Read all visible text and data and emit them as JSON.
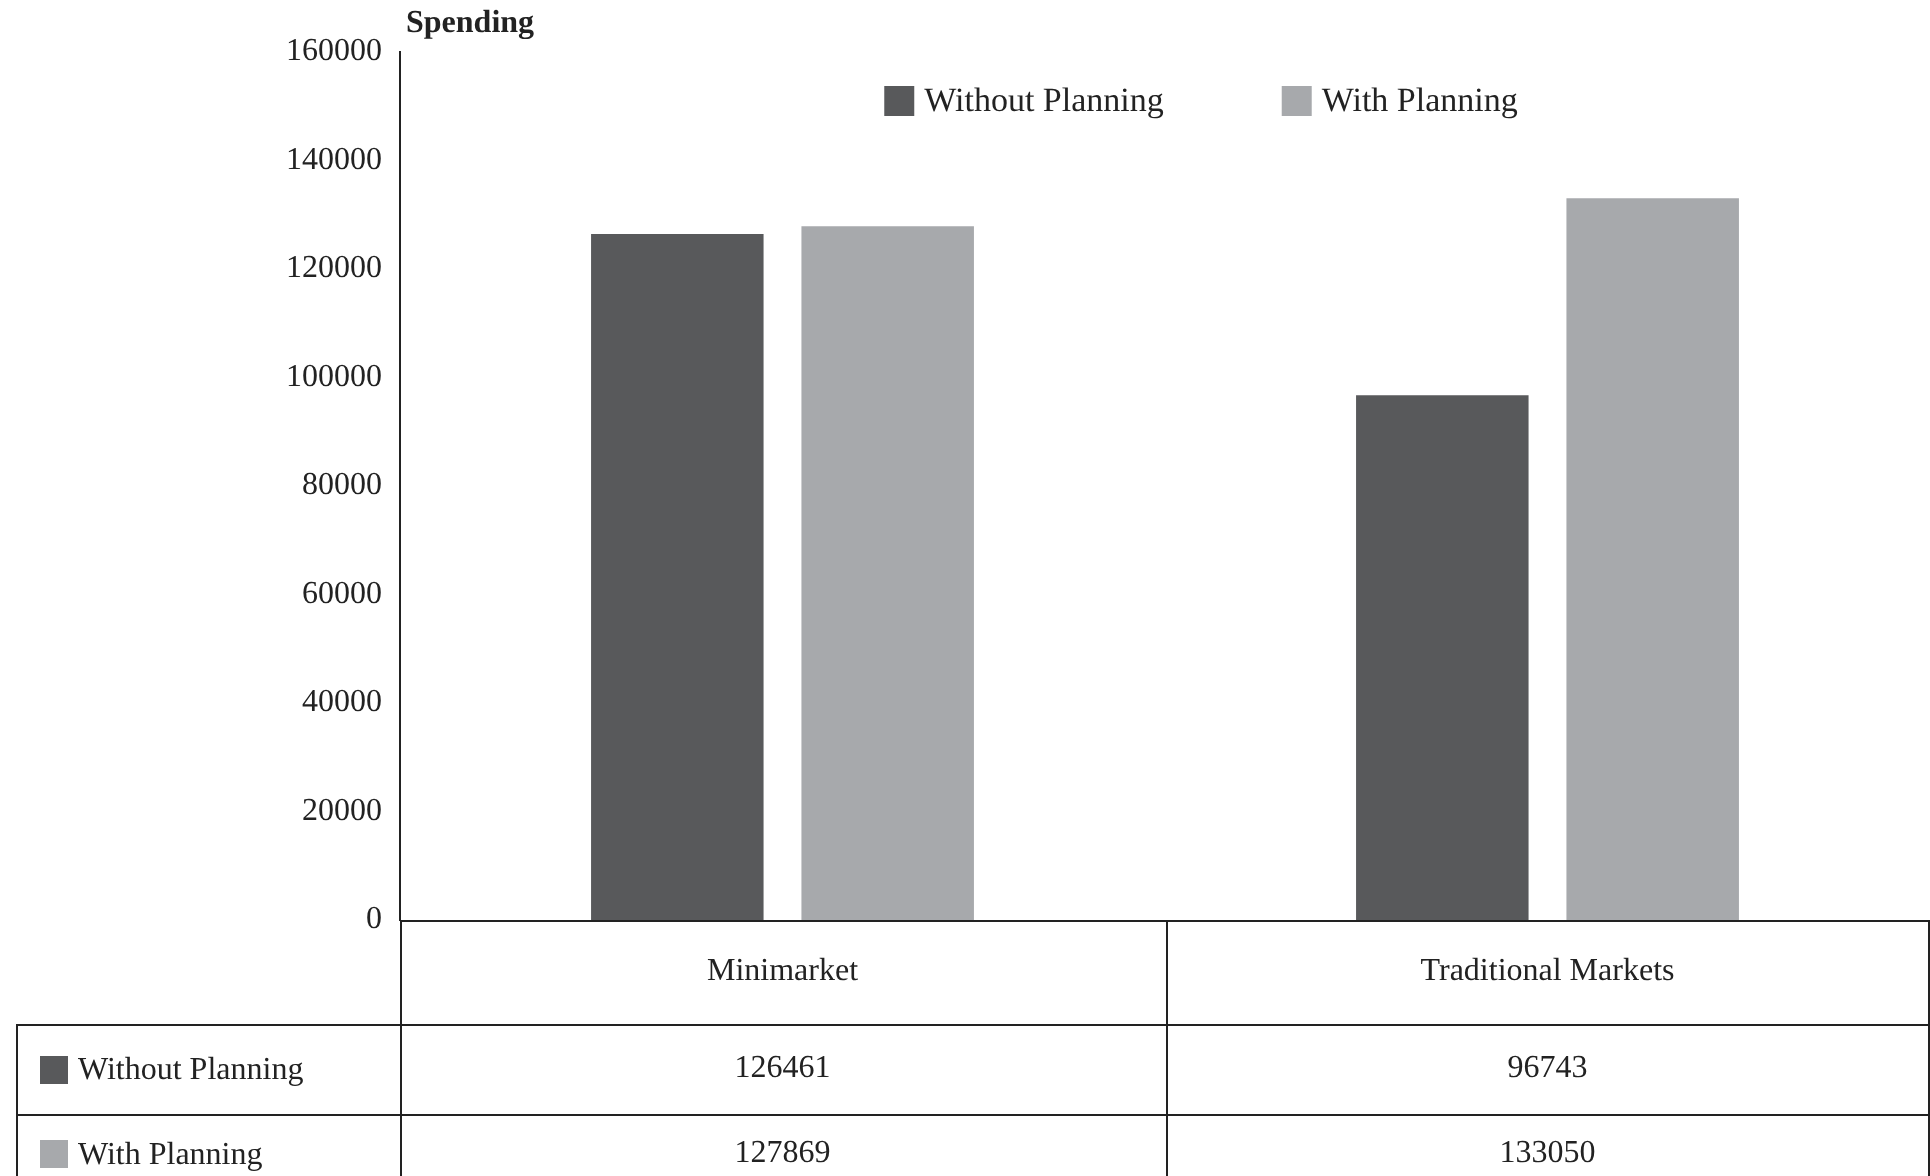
{
  "chart_data": {
    "type": "bar",
    "ylabel": "Spending",
    "categories": [
      "Minimarket",
      "Traditional Markets"
    ],
    "series": [
      {
        "name": "Without Planning",
        "color": "#58595b",
        "values": [
          126461,
          96743
        ]
      },
      {
        "name": "With Planning",
        "color": "#a7a9ac",
        "values": [
          127869,
          133050
        ]
      }
    ],
    "ylim": [
      0,
      160000
    ],
    "yticks": [
      0,
      20000,
      40000,
      60000,
      80000,
      100000,
      120000,
      140000,
      160000
    ],
    "legend": "top",
    "data_labels": true
  }
}
